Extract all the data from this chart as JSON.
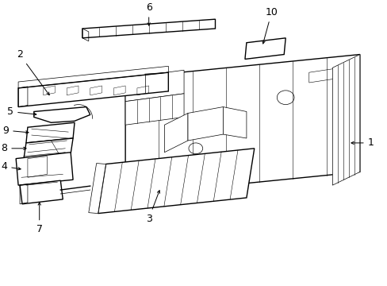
{
  "background_color": "#ffffff",
  "line_color": "#000000",
  "figsize": [
    4.89,
    3.6
  ],
  "dpi": 100,
  "lw_main": 1.0,
  "lw_thin": 0.5,
  "lw_rib": 0.4,
  "label_fontsize": 9
}
